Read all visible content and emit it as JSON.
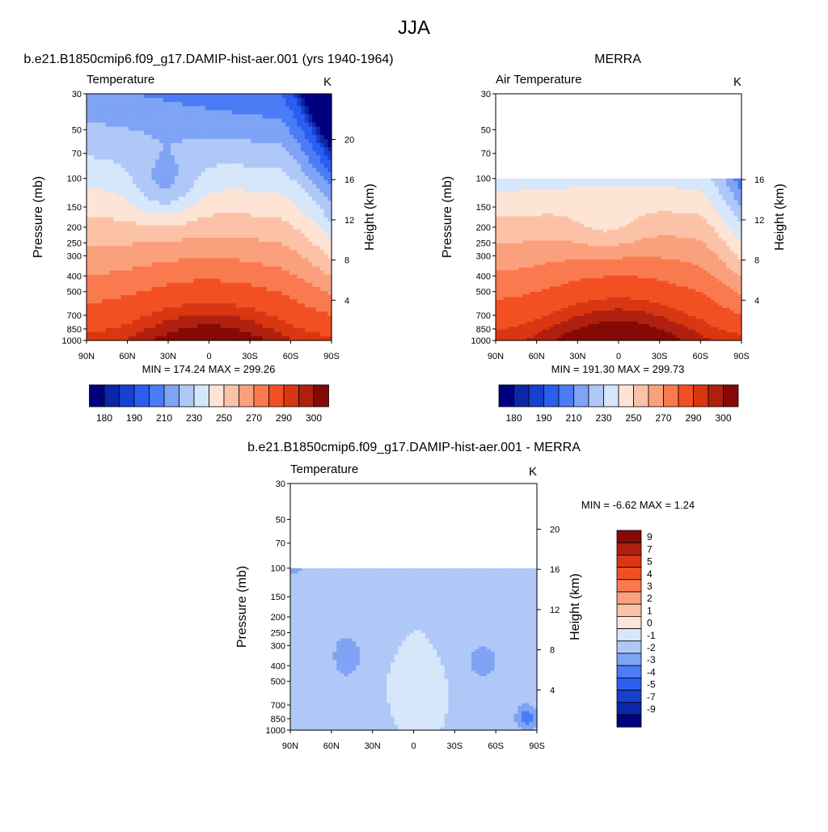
{
  "figure": {
    "title": "JJA"
  },
  "chart_data": [
    {
      "type": "heatmap",
      "id": "model",
      "title": "b.e21.B1850cmip6.f09_g17.DAMIP-hist-aer.001 (yrs 1940-1964)",
      "left_label": "Temperature",
      "unit": "K",
      "xlabel": "",
      "ylabel": "Pressure (mb)",
      "y2label": "Height (km)",
      "x_ticks": [
        "90N",
        "60N",
        "30N",
        "0",
        "30S",
        "60S",
        "90S"
      ],
      "y_ticks": [
        "30",
        "50",
        "70",
        "100",
        "150",
        "200",
        "250",
        "300",
        "400",
        "500",
        "700",
        "850",
        "1000"
      ],
      "y2_ticks": [
        "20",
        "16",
        "12",
        "8",
        "4"
      ],
      "ylim": [
        1000,
        30
      ],
      "data_top_mb": 30,
      "min_max": "MIN = 174.24  MAX = 299.26",
      "stats": {
        "min": 174.24,
        "max": 299.26
      },
      "colorbar_labels": [
        "180",
        "190",
        "210",
        "230",
        "250",
        "270",
        "290",
        "300"
      ]
    },
    {
      "type": "heatmap",
      "id": "obs",
      "title": "MERRA",
      "left_label": "Air Temperature",
      "unit": "K",
      "xlabel": "",
      "ylabel": "Pressure (mb)",
      "y2label": "Height (km)",
      "x_ticks": [
        "90N",
        "60N",
        "30N",
        "0",
        "30S",
        "60S",
        "90S"
      ],
      "y_ticks": [
        "30",
        "50",
        "70",
        "100",
        "150",
        "200",
        "250",
        "300",
        "400",
        "500",
        "700",
        "850",
        "1000"
      ],
      "y2_ticks": [
        "16",
        "12",
        "8",
        "4"
      ],
      "ylim": [
        1000,
        30
      ],
      "data_top_mb": 100,
      "min_max": "MIN = 191.30  MAX = 299.73",
      "stats": {
        "min": 191.3,
        "max": 299.73
      },
      "colorbar_labels": [
        "180",
        "190",
        "210",
        "230",
        "250",
        "270",
        "290",
        "300"
      ]
    },
    {
      "type": "heatmap",
      "id": "diff",
      "title": "b.e21.B1850cmip6.f09_g17.DAMIP-hist-aer.001 - MERRA",
      "left_label": "Temperature",
      "unit": "K",
      "xlabel": "",
      "ylabel": "Pressure (mb)",
      "y2label": "Height (km)",
      "x_ticks": [
        "90N",
        "60N",
        "30N",
        "0",
        "30S",
        "60S",
        "90S"
      ],
      "y_ticks": [
        "30",
        "50",
        "70",
        "100",
        "150",
        "200",
        "250",
        "300",
        "400",
        "500",
        "700",
        "850",
        "1000"
      ],
      "y2_ticks": [
        "20",
        "16",
        "12",
        "8",
        "4"
      ],
      "ylim": [
        1000,
        30
      ],
      "data_top_mb": 100,
      "min_max": "MIN =  -6.62  MAX =   1.24",
      "stats": {
        "min": -6.62,
        "max": 1.24
      },
      "colorbar_labels": [
        "9",
        "7",
        "5",
        "4",
        "3",
        "2",
        "1",
        "0",
        "-1",
        "-2",
        "-3",
        "-4",
        "-5",
        "-7",
        "-9"
      ]
    }
  ],
  "colors": {
    "temp_palette": [
      "#00007f",
      "#0b27a8",
      "#1640cf",
      "#2a5ef0",
      "#4a7cf5",
      "#7fa3f5",
      "#b0c8f7",
      "#d6e6fb",
      "#fde4d4",
      "#fcc2a8",
      "#fba07c",
      "#f97a4e",
      "#f25023",
      "#d93612",
      "#b0200e",
      "#850a06"
    ],
    "diff_palette": [
      "#850a06",
      "#b0200e",
      "#d93612",
      "#f25023",
      "#f97a4e",
      "#fba07c",
      "#fcc2a8",
      "#fde4d4",
      "#d6e6fb",
      "#b0c8f7",
      "#7fa3f5",
      "#4a7cf5",
      "#2a5ef0",
      "#1640cf",
      "#0b27a8",
      "#00007f"
    ]
  }
}
